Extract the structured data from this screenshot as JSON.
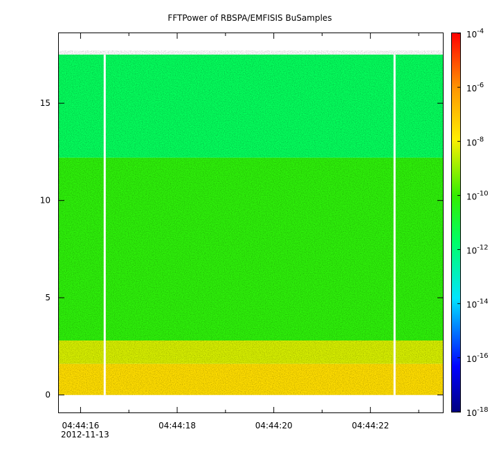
{
  "chart_data": {
    "type": "heatmap",
    "title": "FFTPower of RBSPA/EMFISIS  BuSamples",
    "xlabel": "",
    "ylabel": "",
    "x_ticks": [
      "04:44:16",
      "04:44:18",
      "04:44:20",
      "04:44:22"
    ],
    "x_date_label": "2012-11-13",
    "x_range_seconds": [
      15.55,
      23.5
    ],
    "x_major_tick_seconds": [
      16,
      18,
      20,
      22
    ],
    "x_minor_tick_seconds": [
      17,
      19,
      21,
      23
    ],
    "y_ticks": [
      "0",
      "5",
      "10",
      "15"
    ],
    "y_tick_values": [
      0,
      5,
      10,
      15
    ],
    "ylim": [
      -0.9,
      18.6
    ],
    "data_y_range": [
      0,
      17.5
    ],
    "colorbar": {
      "scale": "log",
      "range": [
        1e-18,
        0.0001
      ],
      "tick_values": [
        -4,
        -6,
        -8,
        -10,
        -12,
        -14,
        -16,
        -18
      ],
      "tick_base": "10",
      "tick_exponents": [
        "-4",
        "-6",
        "-8",
        "-10",
        "-12",
        "-14",
        "-16",
        "-18"
      ]
    },
    "data_gaps_seconds": [
      16.5,
      22.5
    ],
    "bands": [
      {
        "y_from": 12.2,
        "y_to": 17.5,
        "log_power": -11.8
      },
      {
        "y_from": 2.8,
        "y_to": 12.2,
        "log_power": -10.2
      },
      {
        "y_from": 1.6,
        "y_to": 2.8,
        "log_power": -8.4
      },
      {
        "y_from": 0.0,
        "y_to": 1.6,
        "log_power": -7.6
      }
    ],
    "grid": false
  }
}
